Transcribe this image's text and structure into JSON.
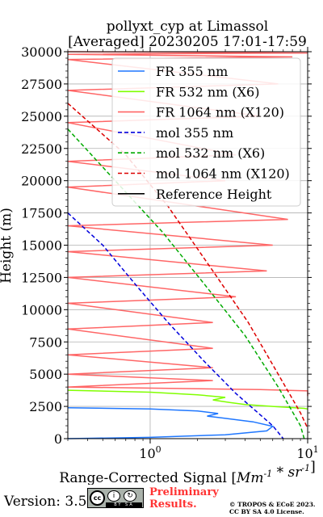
{
  "chart_data": {
    "type": "line",
    "title": "pollyxt_cyp at Limassol",
    "subtitle": "[Averaged] 20230205 17:01-17:59",
    "xlabel": "Range-Corrected Signal [Mm^-1 * sr^-1]",
    "ylabel": "Height (m)",
    "xscale": "log",
    "xlim": [
      0.3,
      10
    ],
    "ylim": [
      0,
      30000
    ],
    "x_tick_labels": [
      "10^0",
      "10^1"
    ],
    "y_ticks": [
      0,
      2500,
      5000,
      7500,
      10000,
      12500,
      15000,
      17500,
      20000,
      22500,
      25000,
      27500,
      30000
    ],
    "grid": true,
    "legend_position": "upper right",
    "series": [
      {
        "name": "FR 355 nm",
        "color": "#1f77ff",
        "style": "solid",
        "points": [
          [
            0.3,
            2400
          ],
          [
            1.0,
            2300
          ],
          [
            2.0,
            2150
          ],
          [
            2.7,
            1950
          ],
          [
            2.3,
            1750
          ],
          [
            2.9,
            1600
          ],
          [
            4.5,
            1300
          ],
          [
            6.0,
            950
          ],
          [
            5.5,
            600
          ],
          [
            3.0,
            300
          ],
          [
            1.0,
            100
          ],
          [
            0.3,
            0
          ]
        ]
      },
      {
        "name": "FR 532 nm (X6)",
        "color": "#80ff00",
        "style": "solid",
        "points": [
          [
            0.3,
            3750
          ],
          [
            1.0,
            3600
          ],
          [
            2.0,
            3400
          ],
          [
            3.0,
            3200
          ],
          [
            2.5,
            3000
          ],
          [
            3.2,
            2800
          ],
          [
            4.0,
            2650
          ],
          [
            6.0,
            2500
          ],
          [
            9.5,
            2350
          ],
          [
            10.0,
            2300
          ]
        ]
      },
      {
        "name": "FR 1064 nm (X120)",
        "color": "#ff6666",
        "style": "solid",
        "points": [
          [
            0.3,
            30000
          ],
          [
            10.0,
            29900
          ],
          [
            0.3,
            29800
          ],
          [
            8.0,
            29600
          ],
          [
            0.3,
            29400
          ],
          [
            6.5,
            27500
          ],
          [
            0.3,
            27000
          ],
          [
            5.0,
            25000
          ],
          [
            0.3,
            24500
          ],
          [
            3.5,
            22000
          ],
          [
            0.3,
            21500
          ],
          [
            3.0,
            20000
          ],
          [
            0.3,
            19500
          ],
          [
            7.5,
            17000
          ],
          [
            0.3,
            16500
          ],
          [
            6.0,
            15000
          ],
          [
            0.3,
            14500
          ],
          [
            5.5,
            13000
          ],
          [
            0.3,
            12500
          ],
          [
            3.5,
            11000
          ],
          [
            0.3,
            10500
          ],
          [
            2.5,
            9000
          ],
          [
            0.3,
            8500
          ],
          [
            2.5,
            7000
          ],
          [
            0.3,
            6500
          ],
          [
            2.5,
            5500
          ],
          [
            0.3,
            5000
          ],
          [
            2.5,
            4500
          ],
          [
            0.3,
            4000
          ],
          [
            5.0,
            3800
          ],
          [
            10.0,
            3700
          ],
          [
            10.0,
            3300
          ]
        ]
      },
      {
        "name": "mol 355 nm",
        "color": "#0000dd",
        "style": "dashed",
        "points": [
          [
            0.3,
            17500
          ],
          [
            0.5,
            15000
          ],
          [
            0.8,
            12000
          ],
          [
            1.3,
            9000
          ],
          [
            2.2,
            6000
          ],
          [
            3.5,
            3500
          ],
          [
            6.0,
            1000
          ],
          [
            7.0,
            0
          ]
        ]
      },
      {
        "name": "mol 532 nm (X6)",
        "color": "#00aa00",
        "style": "dashed",
        "points": [
          [
            0.3,
            24000
          ],
          [
            0.6,
            20000
          ],
          [
            1.2,
            16000
          ],
          [
            2.2,
            12000
          ],
          [
            4.0,
            8000
          ],
          [
            6.5,
            4000
          ],
          [
            9.0,
            1000
          ],
          [
            9.5,
            0
          ]
        ]
      },
      {
        "name": "mol 1064 nm (X120)",
        "color": "#dd0000",
        "style": "dashed",
        "points": [
          [
            0.3,
            26000
          ],
          [
            0.7,
            22000
          ],
          [
            1.3,
            18000
          ],
          [
            2.5,
            13000
          ],
          [
            4.2,
            9000
          ],
          [
            6.5,
            5000
          ],
          [
            9.0,
            2000
          ],
          [
            10.0,
            800
          ]
        ]
      },
      {
        "name": "Reference Height",
        "color": "#000000",
        "style": "solid",
        "points": []
      }
    ]
  },
  "footer": {
    "version": "Version: 3.5",
    "license_cc": "cc",
    "license_by": "i",
    "license_sa": "↻",
    "license_strip": "BY SA",
    "preliminary_line1": "Preliminary",
    "preliminary_line2": "Results.",
    "copyright_line1": "© TROPOS & ECoE 2023.",
    "copyright_line2": "CC BY SA 4.0 License."
  },
  "colors": {
    "background": "#ffffff",
    "grid": "#b0b0b0",
    "legend_bg": "#ffffff"
  }
}
